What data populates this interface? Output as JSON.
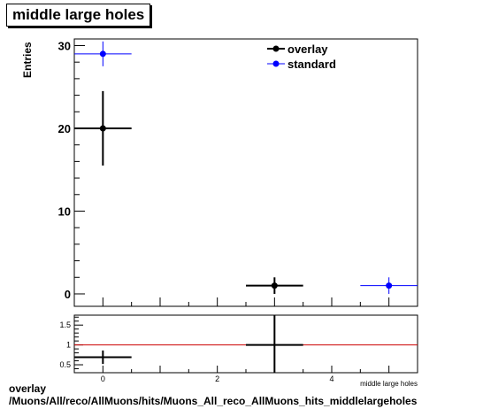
{
  "title": "middle large holes",
  "ylabel": "Entries",
  "footer": {
    "line1": "overlay",
    "line2": "/Muons/All/reco/AllMuons/hits/Muons_All_reco_AllMuons_hits_middlelargeholes"
  },
  "colors": {
    "overlay": "#000000",
    "standard": "#0000ff",
    "ratio_line": "#cc0000"
  },
  "chart_data": [
    {
      "type": "scatter",
      "title": "middle large holes",
      "xlabel": "middle large holes",
      "ylabel": "Entries",
      "xlim": [
        -0.5,
        5.5
      ],
      "ylim": [
        -1.5,
        30.8
      ],
      "yticks": [
        0,
        10,
        20,
        30
      ],
      "legend_position": "top-right",
      "series": [
        {
          "name": "overlay",
          "x": [
            0,
            3
          ],
          "y": [
            20,
            1
          ],
          "xerr": [
            0.5,
            0.5
          ],
          "yerr": [
            4.5,
            1.0
          ]
        },
        {
          "name": "standard",
          "x": [
            0,
            5
          ],
          "y": [
            29,
            1
          ],
          "xerr": [
            0.5,
            0.5
          ],
          "yerr": [
            1.5,
            1.0
          ]
        }
      ]
    },
    {
      "type": "scatter",
      "xlabel": "middle large holes",
      "xlim": [
        -0.5,
        5.5
      ],
      "ylim": [
        0.3,
        1.75
      ],
      "xticks": [
        0,
        2,
        4
      ],
      "yticks": [
        0.5,
        1,
        1.5
      ],
      "reference_line": 1,
      "series": [
        {
          "x": [
            0,
            3
          ],
          "y": [
            0.69,
            1.0
          ],
          "xerr": [
            0.5,
            0.5
          ],
          "yerr": [
            0.17,
            1.4
          ]
        }
      ]
    }
  ]
}
